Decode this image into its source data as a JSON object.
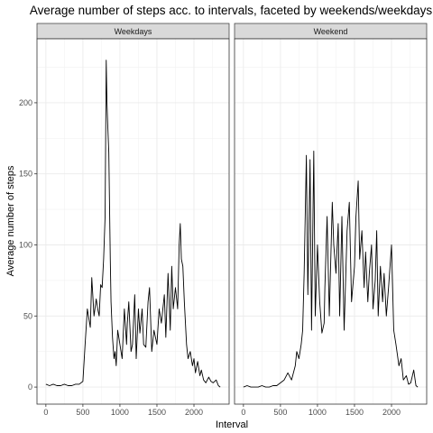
{
  "chart_data": {
    "type": "line",
    "title": "Average number of steps acc. to intervals, faceted by weekends/weekdays",
    "xlabel": "Interval",
    "ylabel": "Average number of steps",
    "xlim": [
      -120,
      2475
    ],
    "ylim": [
      -12,
      245
    ],
    "x_ticks": [
      0,
      500,
      1000,
      1500,
      2000
    ],
    "y_ticks": [
      0,
      50,
      100,
      150,
      200
    ],
    "x_tick_labels": [
      "0",
      "500",
      "1000",
      "1500",
      "2000"
    ],
    "y_tick_labels": [
      "0",
      "50",
      "100",
      "150",
      "200"
    ],
    "grid": true,
    "line_color": "#000000",
    "facets": [
      {
        "label": "Weekdays",
        "x": [
          0,
          50,
          100,
          150,
          200,
          250,
          300,
          350,
          400,
          450,
          500,
          530,
          560,
          600,
          620,
          650,
          680,
          700,
          720,
          740,
          760,
          780,
          800,
          815,
          825,
          835,
          850,
          870,
          880,
          900,
          920,
          935,
          950,
          970,
          1000,
          1030,
          1060,
          1090,
          1100,
          1120,
          1150,
          1170,
          1200,
          1220,
          1250,
          1270,
          1300,
          1320,
          1350,
          1380,
          1400,
          1430,
          1460,
          1500,
          1530,
          1560,
          1600,
          1620,
          1650,
          1680,
          1700,
          1720,
          1750,
          1780,
          1800,
          1815,
          1830,
          1850,
          1870,
          1900,
          1920,
          1950,
          1980,
          2000,
          2020,
          2050,
          2080,
          2100,
          2130,
          2160,
          2200,
          2230,
          2260,
          2300,
          2330,
          2355
        ],
        "y": [
          2,
          1,
          2,
          1,
          1,
          2,
          1,
          1,
          2,
          2,
          4,
          30,
          55,
          42,
          77,
          50,
          62,
          55,
          50,
          72,
          70,
          90,
          120,
          230,
          200,
          185,
          165,
          90,
          60,
          35,
          20,
          25,
          15,
          40,
          30,
          20,
          55,
          30,
          45,
          60,
          25,
          30,
          65,
          20,
          55,
          38,
          55,
          30,
          28,
          60,
          70,
          25,
          40,
          30,
          55,
          45,
          65,
          35,
          80,
          40,
          85,
          55,
          70,
          55,
          100,
          115,
          90,
          85,
          60,
          30,
          20,
          25,
          15,
          20,
          10,
          18,
          8,
          12,
          5,
          3,
          7,
          4,
          3,
          5,
          1,
          0
        ]
      },
      {
        "label": "Weekend",
        "x": [
          0,
          50,
          100,
          150,
          200,
          250,
          300,
          350,
          400,
          450,
          500,
          550,
          600,
          650,
          700,
          720,
          750,
          780,
          800,
          820,
          850,
          870,
          900,
          920,
          950,
          970,
          1000,
          1030,
          1060,
          1090,
          1100,
          1130,
          1160,
          1200,
          1220,
          1250,
          1280,
          1300,
          1330,
          1360,
          1400,
          1430,
          1460,
          1500,
          1520,
          1550,
          1570,
          1600,
          1630,
          1650,
          1680,
          1700,
          1730,
          1750,
          1780,
          1800,
          1820,
          1850,
          1880,
          1900,
          1930,
          1960,
          2000,
          2030,
          2060,
          2100,
          2130,
          2160,
          2200,
          2230,
          2260,
          2300,
          2330,
          2355
        ],
        "y": [
          0,
          1,
          0,
          0,
          0,
          1,
          0,
          0,
          1,
          1,
          3,
          5,
          10,
          5,
          15,
          25,
          20,
          30,
          40,
          80,
          163,
          65,
          160,
          40,
          166,
          50,
          100,
          60,
          38,
          45,
          70,
          120,
          50,
          130,
          100,
          80,
          115,
          50,
          120,
          40,
          110,
          130,
          60,
          85,
          120,
          145,
          90,
          110,
          70,
          95,
          60,
          80,
          100,
          55,
          75,
          110,
          50,
          85,
          60,
          80,
          50,
          70,
          100,
          40,
          30,
          15,
          20,
          5,
          8,
          2,
          3,
          12,
          1,
          0
        ]
      }
    ]
  }
}
